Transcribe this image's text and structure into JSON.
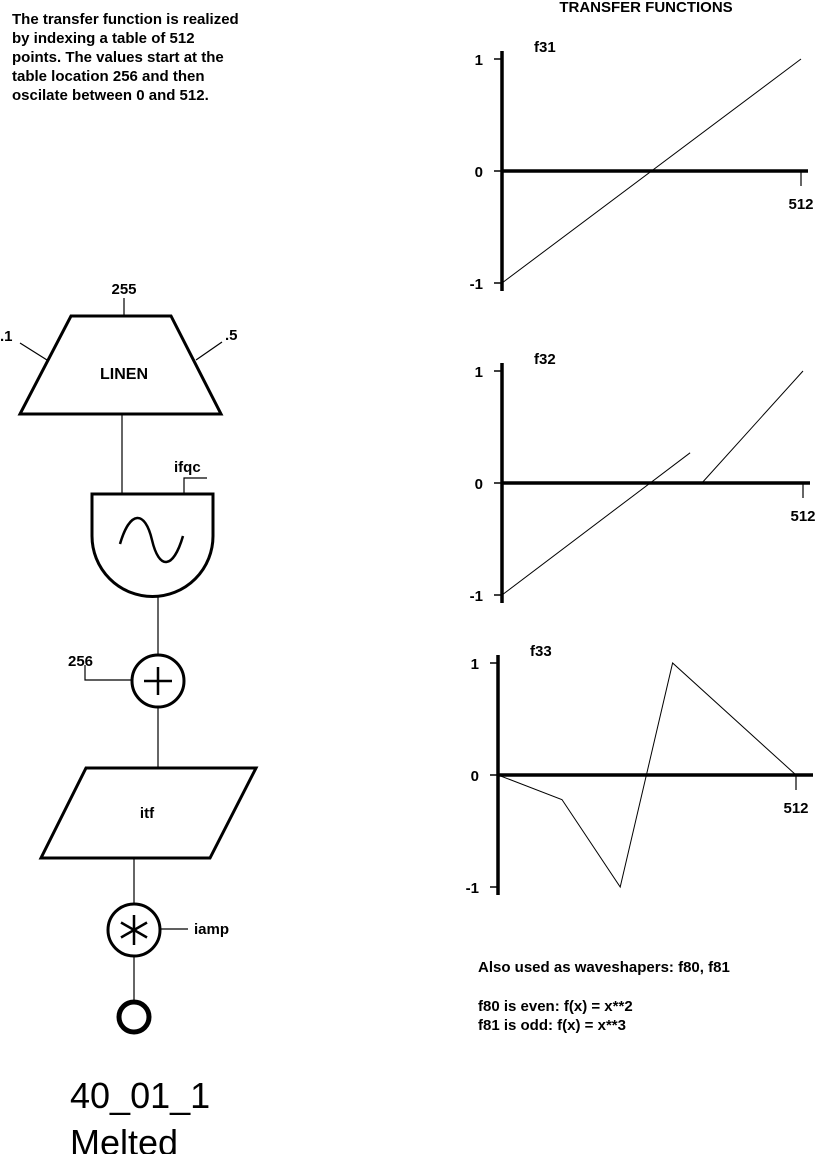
{
  "description": {
    "lines": [
      "The transfer function is realized",
      "by indexing a table of 512",
      "points. The values start at the",
      "table location 256 and then",
      "oscilate between 0 and 512."
    ]
  },
  "transfer_functions": {
    "heading": "TRANSFER FUNCTIONS",
    "y_ticks": [
      "1",
      "0",
      "-1"
    ],
    "x_tick": "512",
    "graphs": [
      {
        "name": "f31",
        "segments": [
          [
            [
              0,
              -1
            ],
            [
              512,
              1
            ]
          ]
        ]
      },
      {
        "name": "f32",
        "segments": [
          [
            [
              0,
              -1
            ],
            [
              320,
              0.27
            ]
          ],
          [
            [
              340,
              0
            ],
            [
              512,
              1
            ]
          ]
        ]
      },
      {
        "name": "f33",
        "segments": [
          [
            [
              0,
              0
            ],
            [
              110,
              -0.22
            ],
            [
              210,
              -1
            ],
            [
              300,
              1
            ],
            [
              512,
              0
            ]
          ]
        ]
      }
    ]
  },
  "blocks": {
    "linen": {
      "label": "LINEN",
      "top_input": "255",
      "left_input": ".1",
      "right_input": ".5"
    },
    "oscillator": {
      "input": "ifqc"
    },
    "adder": {
      "input": "256"
    },
    "table": {
      "label": "itf"
    },
    "multiplier": {
      "input": "iamp"
    }
  },
  "waveshapers": {
    "line1": "Also used as waveshapers: f80, f81",
    "line2": "f80 is even:  f(x) = x**2",
    "line3": "f81 is odd:  f(x) = x**3"
  },
  "footer": {
    "id": "40_01_1",
    "name": "Melted"
  }
}
